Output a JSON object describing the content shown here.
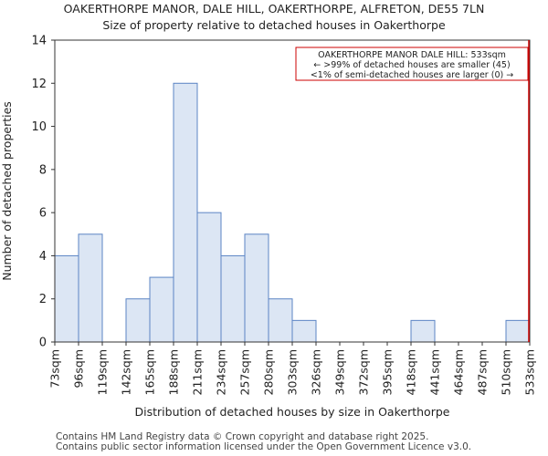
{
  "chart_data": {
    "type": "bar",
    "title": "OAKERTHORPE MANOR, DALE HILL, OAKERTHORPE, ALFRETON, DE55 7LN",
    "subtitle": "Size of property relative to detached houses in Oakerthorpe",
    "xlabel": "Distribution of detached houses by size in Oakerthorpe",
    "ylabel": "Number of detached properties",
    "bin_edges": [
      "73sqm",
      "96sqm",
      "119sqm",
      "142sqm",
      "165sqm",
      "188sqm",
      "211sqm",
      "234sqm",
      "257sqm",
      "280sqm",
      "303sqm",
      "326sqm",
      "349sqm",
      "372sqm",
      "395sqm",
      "418sqm",
      "441sqm",
      "464sqm",
      "487sqm",
      "510sqm",
      "533sqm"
    ],
    "values": [
      4,
      5,
      0,
      2,
      3,
      12,
      6,
      4,
      5,
      2,
      1,
      0,
      0,
      0,
      0,
      1,
      0,
      0,
      0,
      1
    ],
    "yticks": [
      "0",
      "2",
      "4",
      "6",
      "8",
      "10",
      "12",
      "14"
    ],
    "ylim": [
      0,
      14
    ],
    "bar_color": "#dce6f4",
    "bar_edge_color": "#5b84c4",
    "marker": {
      "value_bin_index": 20,
      "color": "#cc0000",
      "annotation": [
        "OAKERTHORPE MANOR DALE HILL: 533sqm",
        "← >99% of detached houses are smaller (45)",
        "<1% of semi-detached houses are larger (0) →"
      ]
    }
  },
  "footer": {
    "line1": "Contains HM Land Registry data © Crown copyright and database right 2025.",
    "line2": "Contains public sector information licensed under the Open Government Licence v3.0."
  }
}
